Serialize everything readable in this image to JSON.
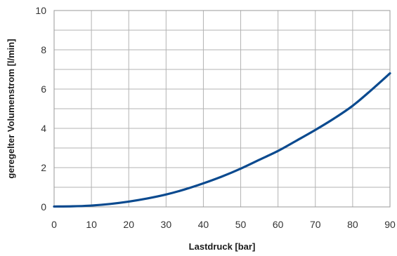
{
  "chart_data": {
    "type": "line",
    "title": "",
    "xlabel": "Lastdruck [bar]",
    "ylabel": "geregelter Volumenstrom [l/min]",
    "xlim": [
      0,
      90
    ],
    "ylim": [
      0,
      10
    ],
    "grid": true,
    "x_ticks": [
      "0",
      "10",
      "20",
      "30",
      "40",
      "50",
      "60",
      "70",
      "80",
      "90"
    ],
    "y_ticks": [
      "0",
      "2",
      "4",
      "6",
      "8",
      "10"
    ],
    "line_color": "#0b4a8f",
    "series": [
      {
        "x": [
          0,
          5,
          10,
          15,
          20,
          25,
          30,
          35,
          40,
          45,
          50,
          55,
          60,
          65,
          70,
          75,
          80,
          85,
          90
        ],
        "y": [
          0.02,
          0.03,
          0.07,
          0.15,
          0.27,
          0.43,
          0.63,
          0.89,
          1.2,
          1.55,
          1.95,
          2.4,
          2.85,
          3.38,
          3.92,
          4.5,
          5.15,
          5.95,
          6.8
        ]
      }
    ]
  }
}
